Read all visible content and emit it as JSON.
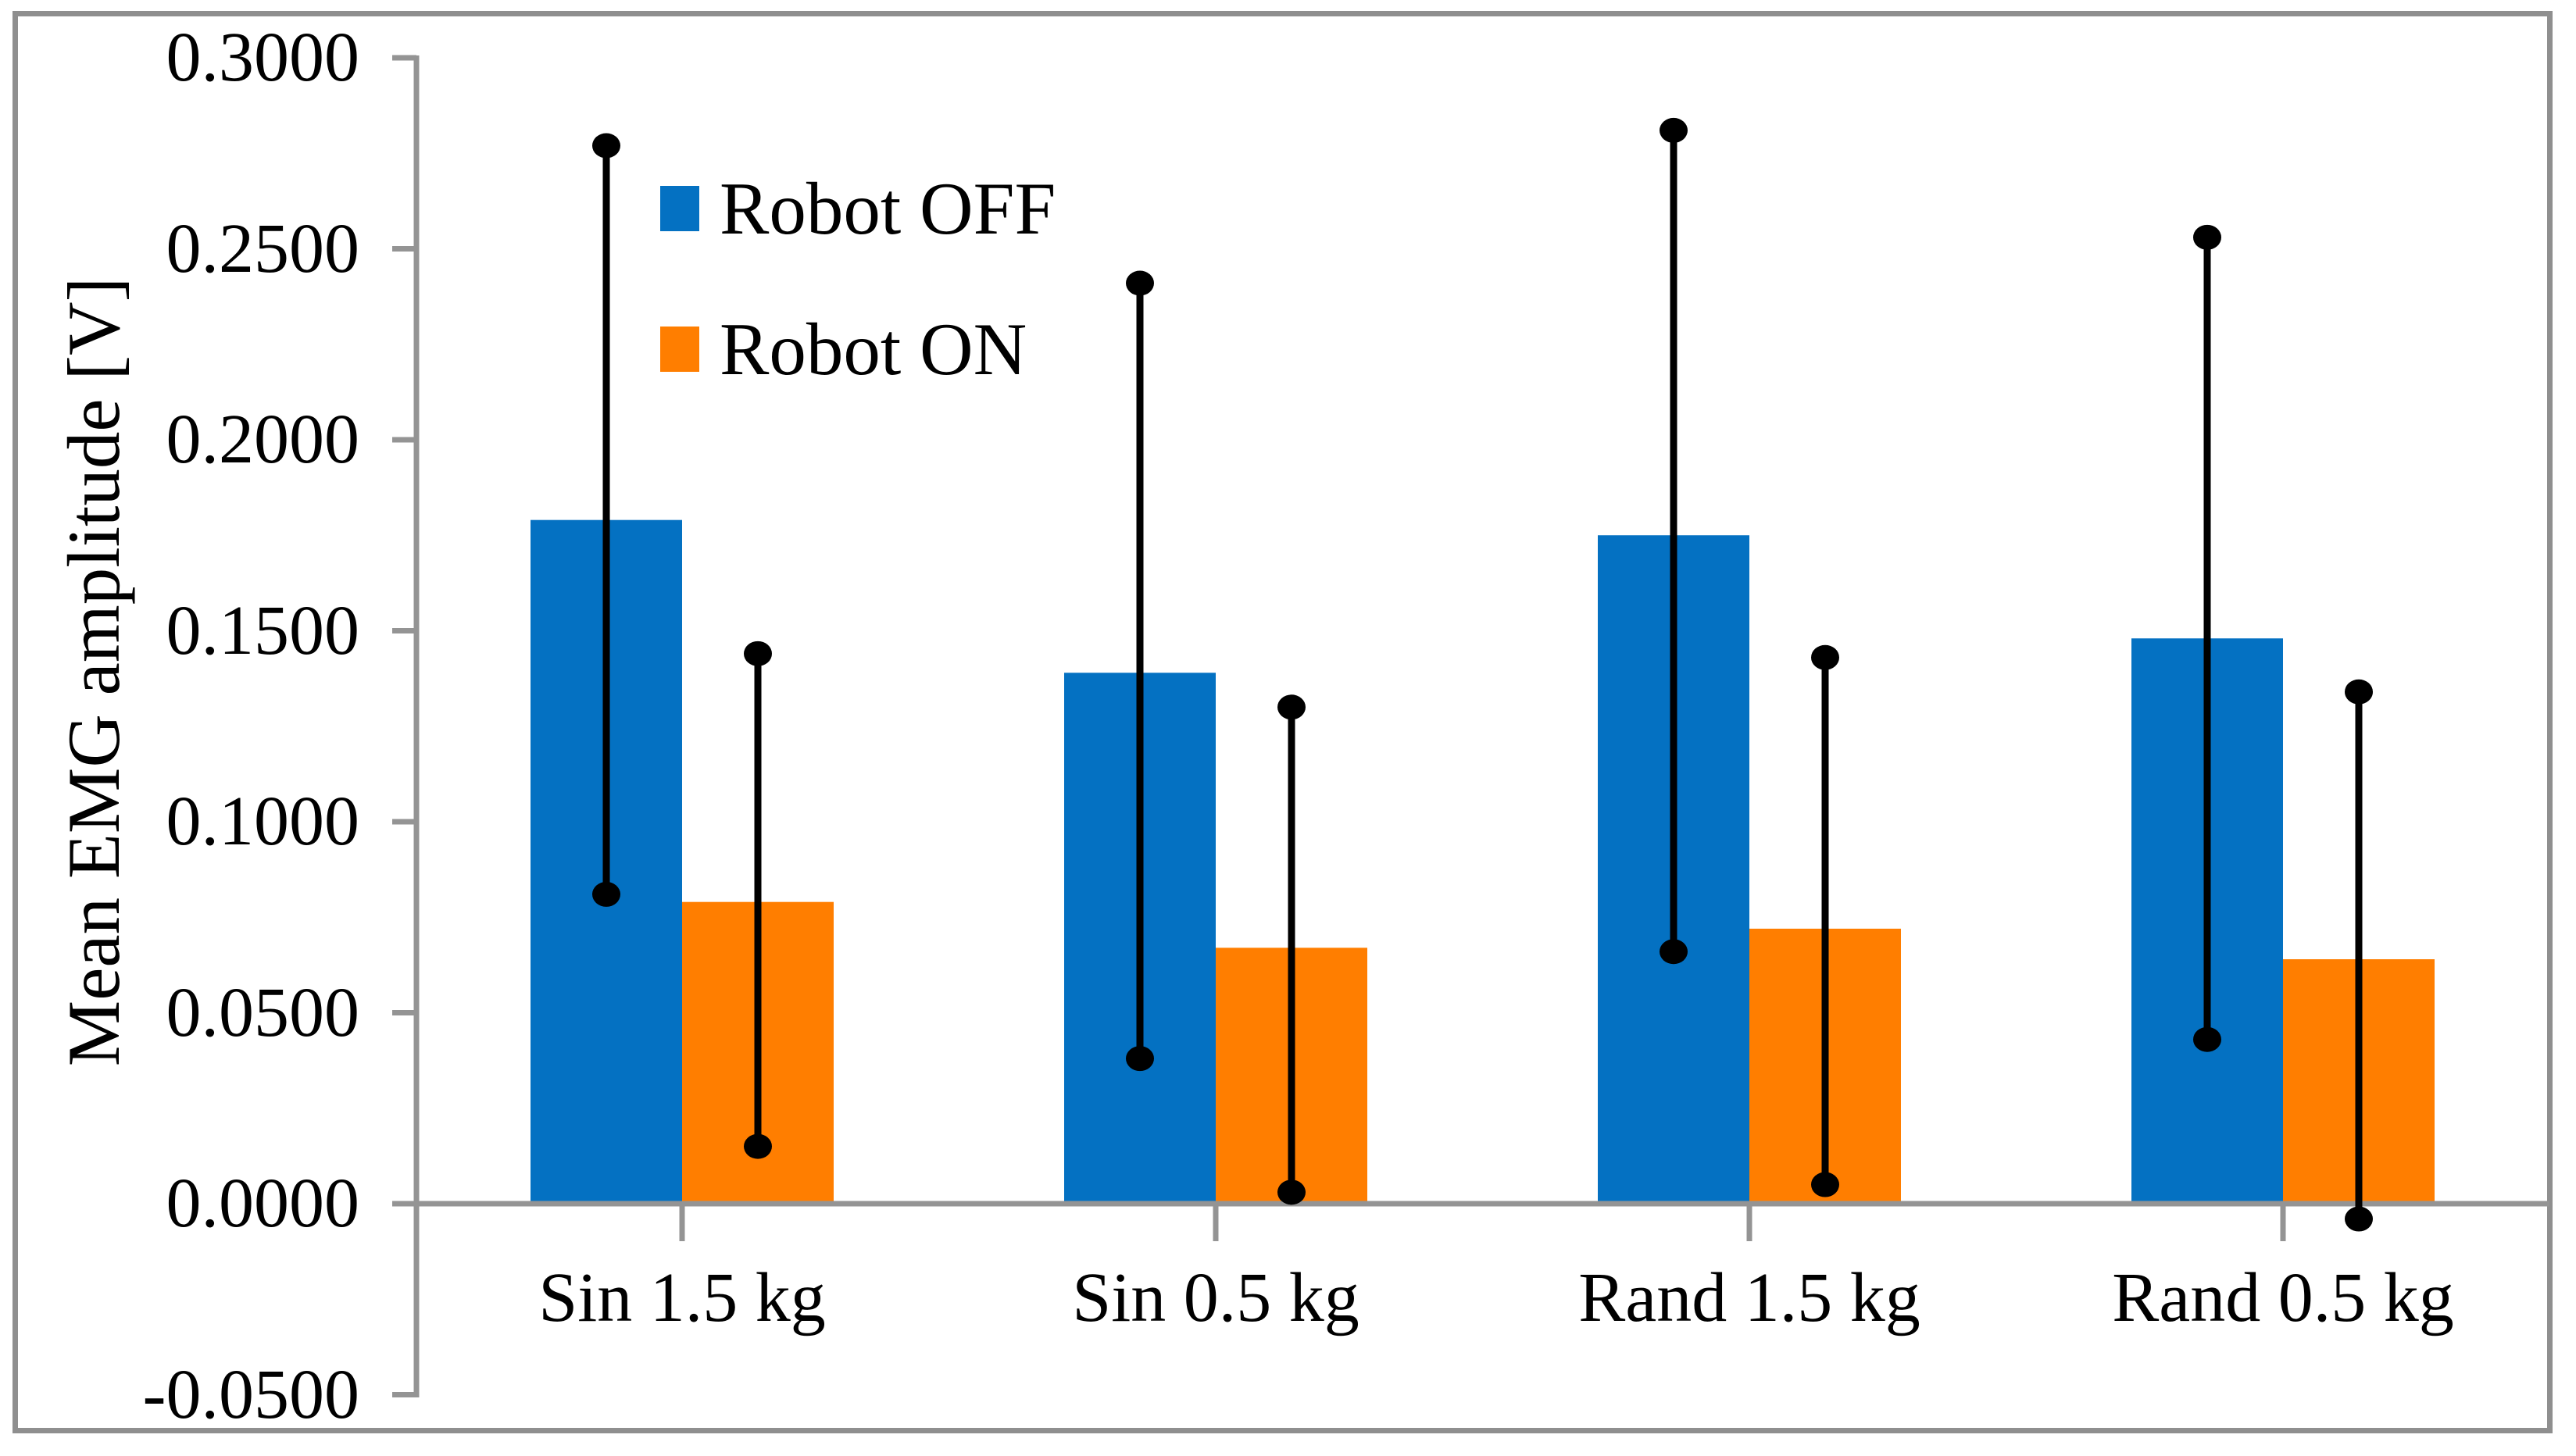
{
  "figure": {
    "background": "#ffffff",
    "frame_color": "#8f8f8f",
    "axis_color": "#949494",
    "error_bar_color": "#000000"
  },
  "legend": {
    "position": "upper-left-inside",
    "items": [
      {
        "label": "Robot OFF",
        "color": "#0471c2"
      },
      {
        "label": "Robot ON",
        "color": "#ff7e00"
      }
    ]
  },
  "chart_data": {
    "type": "bar",
    "title": "",
    "xlabel": "",
    "ylabel": "Mean EMG amplitude [V]",
    "ylim": [
      -0.05,
      0.3
    ],
    "ytick_step": 0.05,
    "yticks": [
      0.3,
      0.25,
      0.2,
      0.15,
      0.1,
      0.05,
      0.0,
      -0.05
    ],
    "ytick_labels": [
      "0.3000",
      "0.2500",
      "0.2000",
      "0.1500",
      "0.1000",
      "0.0500",
      "0.0000",
      "-0.0500"
    ],
    "grid": false,
    "legend_position": "upper-left-inside",
    "error_bar_style": "vertical line with filled dot caps",
    "categories": [
      "Sin 1.5 kg",
      "Sin 0.5 kg",
      "Rand 1.5 kg",
      "Rand 0.5 kg"
    ],
    "series": [
      {
        "name": "Robot OFF",
        "color": "#0471c2",
        "values": [
          0.179,
          0.139,
          0.175,
          0.148
        ],
        "error_low": [
          0.081,
          0.038,
          0.066,
          0.043
        ],
        "error_high": [
          0.277,
          0.241,
          0.281,
          0.253
        ]
      },
      {
        "name": "Robot ON",
        "color": "#ff7e00",
        "values": [
          0.079,
          0.067,
          0.072,
          0.064
        ],
        "error_low": [
          0.015,
          0.003,
          0.005,
          -0.004
        ],
        "error_high": [
          0.144,
          0.13,
          0.143,
          0.134
        ]
      }
    ]
  }
}
